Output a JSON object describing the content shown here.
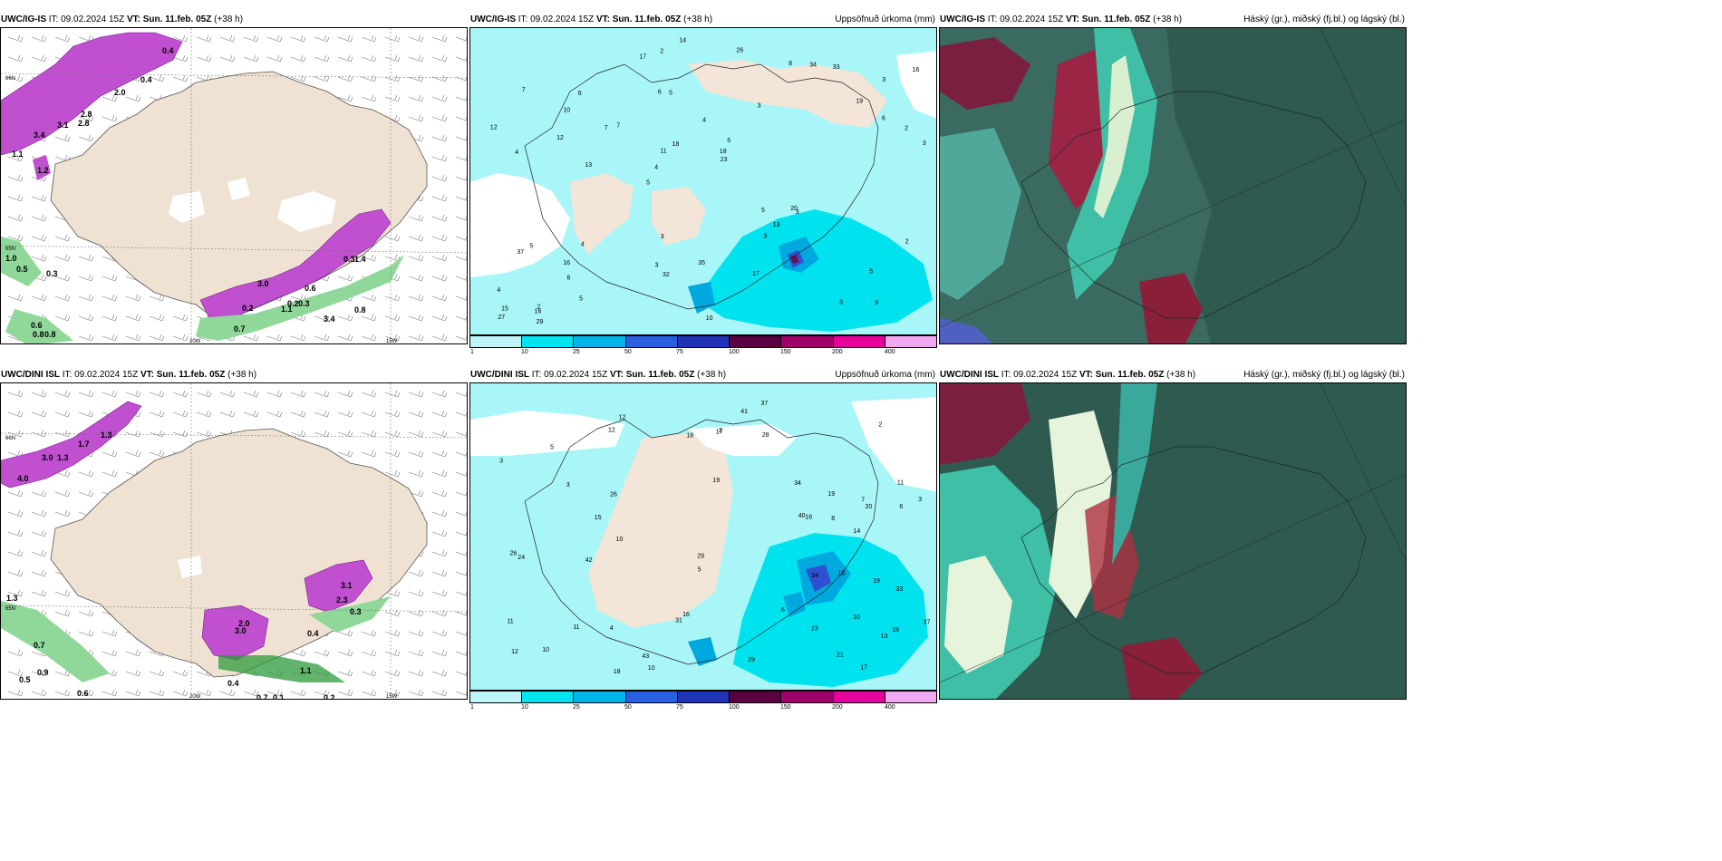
{
  "panels": {
    "p1": {
      "model": "UWC/IG-IS",
      "issue": "IT: 09.02.2024 15Z",
      "valid": "VT: Sun. 11.feb. 05Z",
      "lead": "(+38 h)",
      "right": "",
      "axis": [
        "66N",
        "65N",
        "20W",
        "15W"
      ],
      "labels": [
        "0.4",
        "0.4",
        "2.0",
        "2.8",
        "2.8",
        "3.1",
        "3.4",
        "1.1",
        "1.2",
        "1.0",
        "0.5",
        "0.3",
        "3.0",
        "0.2",
        "0.2",
        "0.3",
        "1.1",
        "0.8",
        "3.4",
        "0.6",
        "0.3",
        "1.4",
        "0.6",
        "0.8",
        "0.8",
        "0.7"
      ]
    },
    "p2": {
      "model": "UWC/IG-IS",
      "issue": "IT: 09.02.2024 15Z",
      "valid": "VT: Sun. 11.feb. 05Z",
      "lead": "(+38 h)",
      "right": "Uppsöfnuð úrkoma (mm)",
      "numbers": [
        "9",
        "4",
        "3",
        "5",
        "3",
        "2",
        "6",
        "4",
        "5",
        "7",
        "4",
        "6",
        "5",
        "5",
        "3",
        "7",
        "2",
        "3",
        "5",
        "6",
        "4",
        "3",
        "11",
        "6",
        "8",
        "4",
        "3",
        "5",
        "20",
        "10",
        "7",
        "12",
        "3",
        "5",
        "2",
        "18",
        "15",
        "32",
        "23",
        "37",
        "19",
        "16",
        "13",
        "17",
        "16",
        "29",
        "27",
        "35",
        "33",
        "14",
        "13",
        "12",
        "10",
        "34",
        "16",
        "26",
        "17",
        "18",
        "2",
        "3"
      ]
    },
    "p3": {
      "model": "UWC/IG-IS",
      "issue": "IT: 09.02.2024 15Z",
      "valid": "VT: Sun. 11.feb. 05Z",
      "lead": "(+38 h)",
      "right": "Háský (gr.), miðský (fj.bl.) og lágský (bl.)"
    },
    "p4": {
      "model": "UWC/DINI ISL",
      "issue": "IT: 09.02.2024 15Z",
      "valid": "VT: Sun. 11.feb. 05Z",
      "lead": "(+38 h)",
      "right": "",
      "axis": [
        "66N",
        "65N",
        "20W",
        "15W"
      ],
      "labels": [
        "4.0",
        "3.0",
        "1.3",
        "1.7",
        "1.3",
        "0.7",
        "0.5",
        "0.9",
        "0.6",
        "3.0",
        "2.0",
        "3.1",
        "2.3",
        "0.3",
        "0.4",
        "1.1",
        "0.4",
        "0.7",
        "0.2",
        "0.1",
        "1.3"
      ]
    },
    "p5": {
      "model": "UWC/DINI ISL",
      "issue": "IT: 09.02.2024 15Z",
      "valid": "VT: Sun. 11.feb. 05Z",
      "lead": "(+38 h)",
      "right": "Uppsöfnuð úrkoma (mm)",
      "numbers": [
        "10",
        "11",
        "19",
        "19",
        "12",
        "12",
        "7",
        "4",
        "2",
        "3",
        "6",
        "3",
        "14",
        "10",
        "11",
        "5",
        "13",
        "12",
        "16",
        "20",
        "26",
        "24",
        "29",
        "40",
        "43",
        "31",
        "41",
        "28",
        "34",
        "37",
        "42",
        "23",
        "18",
        "29",
        "19",
        "21",
        "16",
        "18",
        "17",
        "10",
        "10",
        "8",
        "17",
        "15",
        "33",
        "34",
        "10",
        "37",
        "26",
        "19",
        "11",
        "5",
        "2",
        "3",
        "6"
      ]
    },
    "p6": {
      "model": "UWC/DINI ISL",
      "issue": "IT: 09.02.2024 15Z",
      "valid": "VT: Sun. 11.feb. 05Z",
      "lead": "(+38 h)",
      "right": "Háský (gr.), miðský (fj.bl.) og lágský (bl.)"
    }
  },
  "colorbar": {
    "ticks": [
      "1",
      "10",
      "25",
      "50",
      "75",
      "100",
      "150",
      "200",
      "400"
    ],
    "colors": [
      "#bff5f8",
      "#00e5ee",
      "#00b4e8",
      "#2a5fe0",
      "#2233b8",
      "#5a0040",
      "#a0006a",
      "#e8009a",
      "#f0a8f0"
    ]
  },
  "colors": {
    "land": "#efe2d3",
    "sea_wind": "#ffffff",
    "precip_light": "#a9f6f8",
    "precip_mid": "#00e3ef",
    "snow": "#c050d0",
    "rain": "#2e9b3c",
    "cloud_high": "#2f5a50",
    "cloud_mid": "#3aa89a",
    "cloud_low": "#8a1f3a"
  }
}
